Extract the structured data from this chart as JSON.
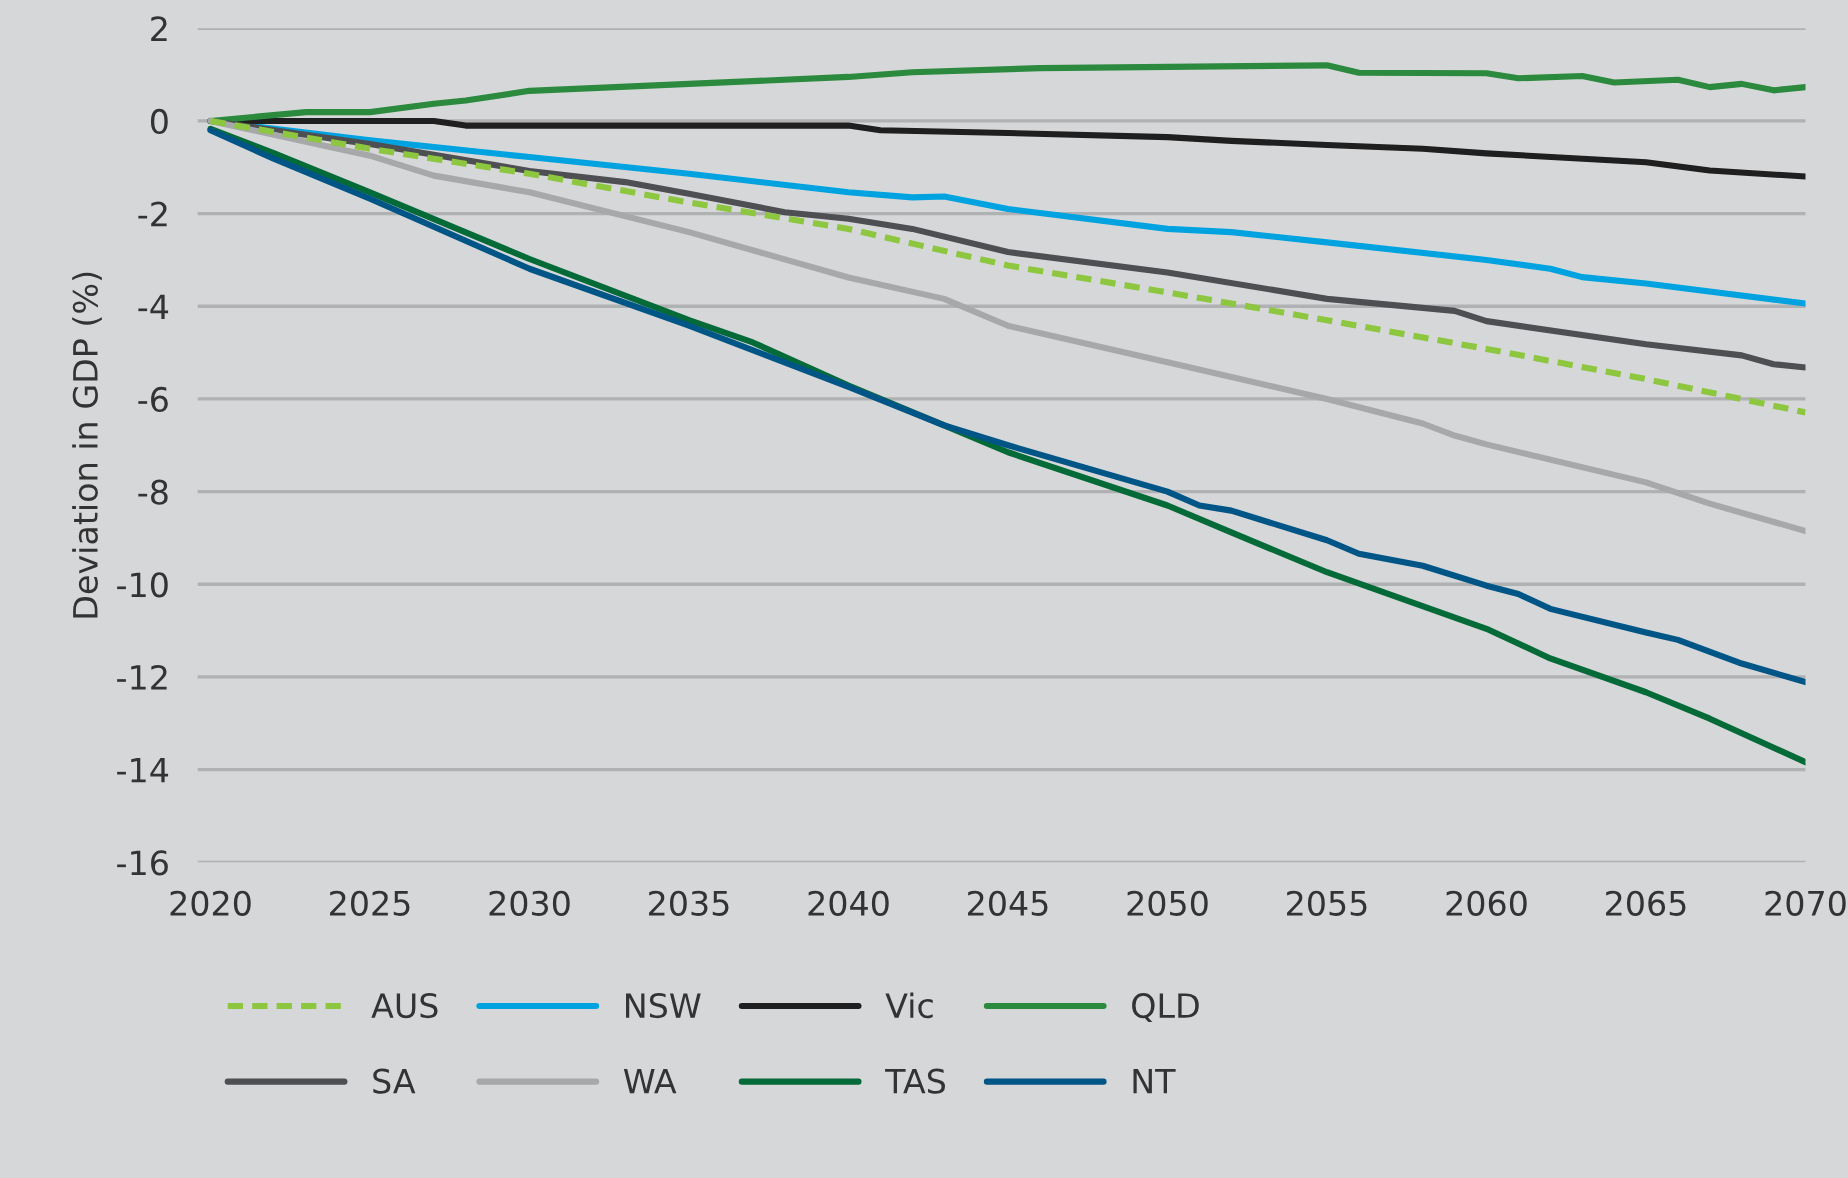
{
  "chart_data": {
    "type": "line",
    "ylabel": "Deviation in GDP (%)",
    "xlim": [
      2019.6,
      2070
    ],
    "xticks": [
      2020,
      2025,
      2030,
      2035,
      2040,
      2045,
      2050,
      2055,
      2060,
      2065,
      2070
    ],
    "ylim": [
      -16,
      2
    ],
    "yticks": [
      -16,
      -14,
      -12,
      -10,
      -8,
      -6,
      -4,
      -2,
      0,
      2
    ],
    "grid": "y",
    "legend": "bottom",
    "series": [
      {
        "name": "AUS",
        "color": "#8dc63f",
        "line_style": "dashed",
        "x": [
          2020,
          2025,
          2030,
          2035,
          2040,
          2045,
          2050,
          2055,
          2060,
          2065,
          2070
        ],
        "values": [
          0,
          -0.6,
          -1.14,
          -1.76,
          -2.33,
          -3.12,
          -3.7,
          -4.3,
          -4.92,
          -5.57,
          -6.29
        ]
      },
      {
        "name": "NSW",
        "color": "#00a3e0",
        "x": [
          2020,
          2025,
          2030,
          2035,
          2040,
          2042,
          2043,
          2045,
          2050,
          2052,
          2055,
          2060,
          2062,
          2063,
          2065,
          2070
        ],
        "values": [
          0,
          -0.42,
          -0.78,
          -1.14,
          -1.54,
          -1.65,
          -1.63,
          -1.9,
          -2.33,
          -2.4,
          -2.62,
          -3.0,
          -3.19,
          -3.37,
          -3.51,
          -3.94
        ]
      },
      {
        "name": "Vic",
        "color": "#1f1f1f",
        "x": [
          2020,
          2027,
          2028,
          2040,
          2041,
          2045,
          2050,
          2052,
          2055,
          2058,
          2060,
          2065,
          2067,
          2070
        ],
        "values": [
          0,
          0,
          -0.1,
          -0.1,
          -0.2,
          -0.26,
          -0.35,
          -0.43,
          -0.52,
          -0.6,
          -0.7,
          -0.89,
          -1.07,
          -1.2
        ]
      },
      {
        "name": "QLD",
        "color": "#2b8a3e",
        "x": [
          2020,
          2023,
          2025,
          2027,
          2028,
          2030,
          2035,
          2040,
          2042,
          2046,
          2055,
          2056,
          2060,
          2061,
          2063,
          2064,
          2066,
          2067,
          2068,
          2069,
          2070
        ],
        "values": [
          0,
          0.19,
          0.19,
          0.37,
          0.44,
          0.65,
          0.8,
          0.95,
          1.05,
          1.14,
          1.2,
          1.04,
          1.03,
          0.92,
          0.97,
          0.83,
          0.89,
          0.73,
          0.8,
          0.66,
          0.73
        ]
      },
      {
        "name": "SA",
        "color": "#4d4f53",
        "x": [
          2020,
          2025,
          2030,
          2033,
          2035,
          2038,
          2040,
          2042,
          2045,
          2050,
          2055,
          2059,
          2060,
          2065,
          2068,
          2069,
          2070
        ],
        "values": [
          0,
          -0.5,
          -1.08,
          -1.32,
          -1.57,
          -1.97,
          -2.11,
          -2.33,
          -2.83,
          -3.27,
          -3.84,
          -4.1,
          -4.32,
          -4.82,
          -5.06,
          -5.25,
          -5.32
        ]
      },
      {
        "name": "WA",
        "color": "#a7a8aa",
        "x": [
          2020,
          2025,
          2027,
          2030,
          2035,
          2040,
          2043,
          2045,
          2050,
          2055,
          2058,
          2059,
          2060,
          2065,
          2067,
          2070
        ],
        "values": [
          0,
          -0.75,
          -1.18,
          -1.54,
          -2.4,
          -3.38,
          -3.84,
          -4.42,
          -5.21,
          -6.0,
          -6.53,
          -6.79,
          -6.98,
          -7.8,
          -8.26,
          -8.85
        ]
      },
      {
        "name": "TAS",
        "color": "#046a38",
        "x": [
          2020,
          2022,
          2025,
          2030,
          2035,
          2037,
          2040,
          2043,
          2045,
          2050,
          2052,
          2055,
          2060,
          2062,
          2065,
          2067,
          2070
        ],
        "values": [
          -0.17,
          -0.7,
          -1.54,
          -2.98,
          -4.3,
          -4.78,
          -5.71,
          -6.57,
          -7.15,
          -8.3,
          -8.88,
          -9.74,
          -10.96,
          -11.6,
          -12.33,
          -12.9,
          -13.84
        ]
      },
      {
        "name": "NT",
        "color": "#005587",
        "x": [
          2020,
          2022,
          2025,
          2030,
          2035,
          2040,
          2043,
          2045,
          2050,
          2051,
          2052,
          2055,
          2056,
          2058,
          2060,
          2061,
          2062,
          2065,
          2066,
          2068,
          2070
        ],
        "values": [
          -0.2,
          -0.82,
          -1.68,
          -3.19,
          -4.42,
          -5.74,
          -6.57,
          -7.0,
          -8.0,
          -8.3,
          -8.41,
          -9.05,
          -9.34,
          -9.6,
          -10.03,
          -10.21,
          -10.53,
          -11.04,
          -11.2,
          -11.71,
          -12.11
        ]
      }
    ]
  }
}
